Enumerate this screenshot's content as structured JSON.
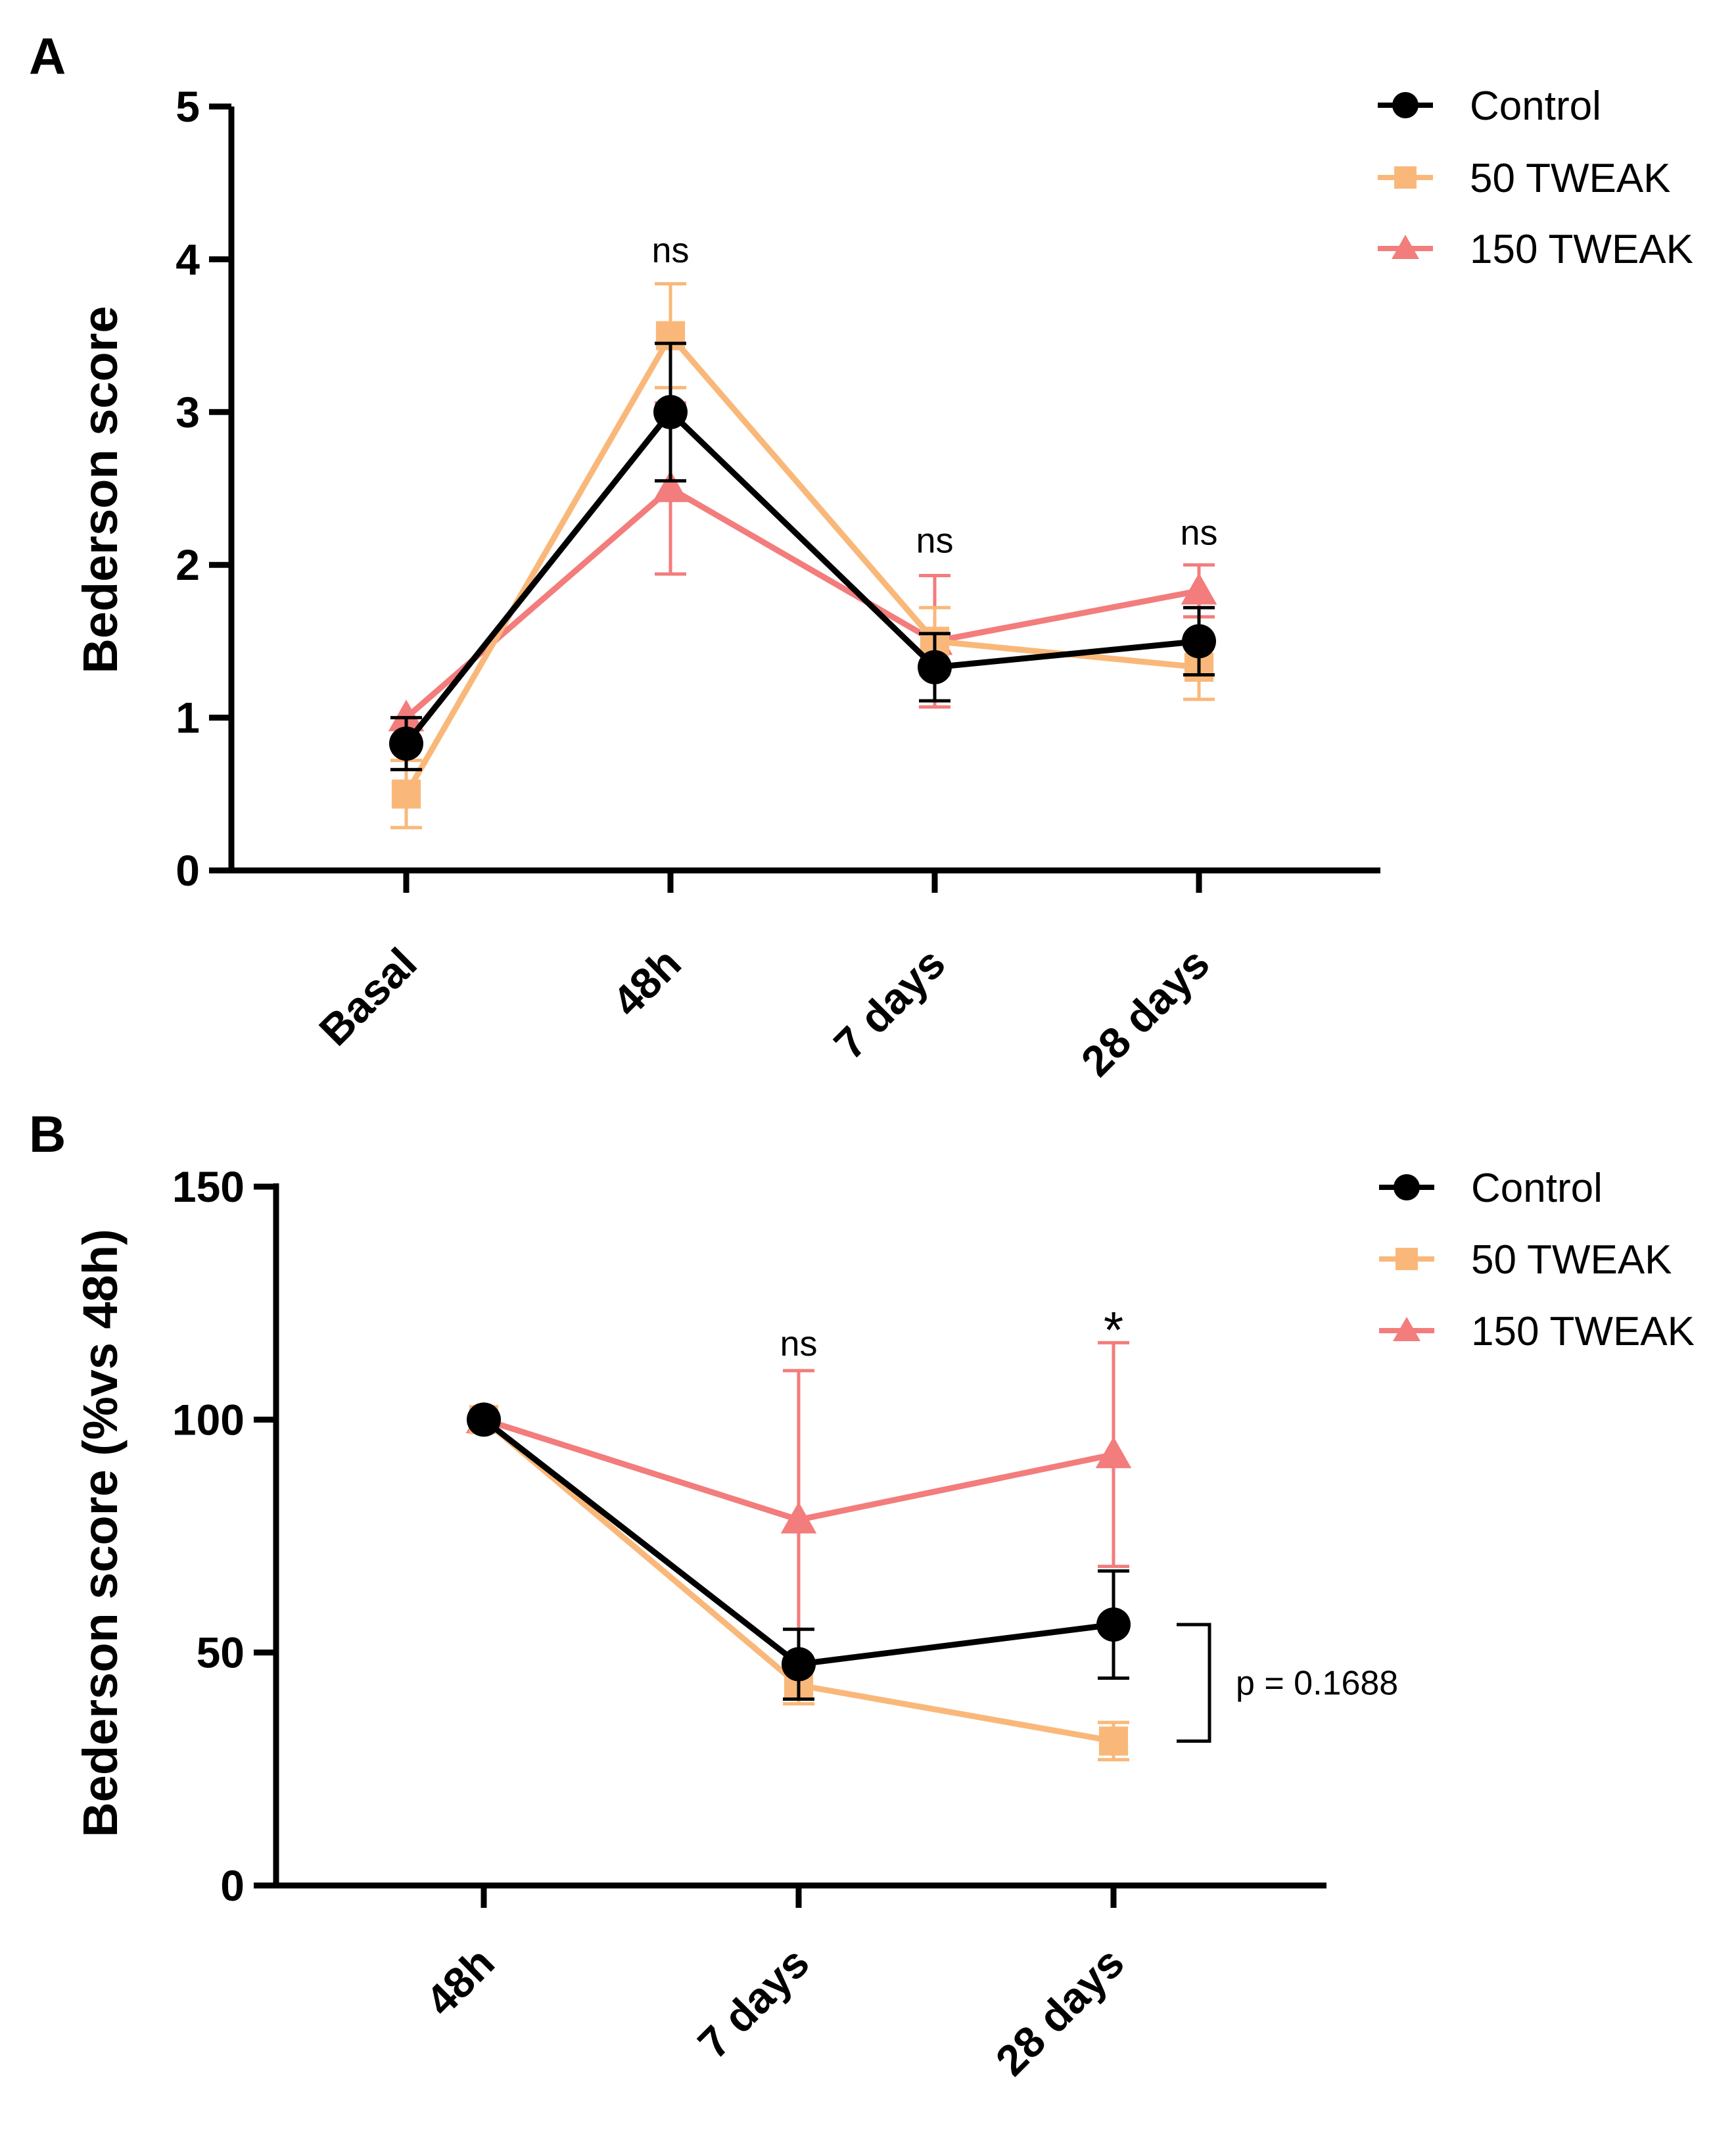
{
  "chart_data": [
    {
      "type": "line",
      "panel": "A",
      "title": "",
      "xlabel": "",
      "ylabel": "Bederson score",
      "ylim": [
        0,
        5
      ],
      "yticks": [
        "0",
        "1",
        "2",
        "3",
        "4",
        "5"
      ],
      "categories": [
        "Basal",
        "48h",
        "7 days",
        "28 days"
      ],
      "series": [
        {
          "name": "Control",
          "marker": "circle",
          "color": "#000000",
          "values": [
            0.83,
            3.0,
            1.33,
            1.5
          ],
          "errors": [
            0.17,
            0.45,
            0.22,
            0.22
          ]
        },
        {
          "name": "50 TWEAK",
          "marker": "square",
          "color": "#F9B87A",
          "values": [
            0.5,
            3.5,
            1.5,
            1.33
          ],
          "errors": [
            0.22,
            0.34,
            0.22,
            0.21
          ]
        },
        {
          "name": "150 TWEAK",
          "marker": "triangle",
          "color": "#F37C7C",
          "values": [
            1.0,
            2.5,
            1.5,
            1.83
          ],
          "errors": [
            0.0,
            0.56,
            0.43,
            0.17
          ]
        }
      ],
      "annotations": [
        {
          "category": "48h",
          "text": "ns",
          "y": 4.05
        },
        {
          "category": "7 days",
          "text": "ns",
          "y": 2.15
        },
        {
          "category": "28 days",
          "text": "ns",
          "y": 2.2
        }
      ],
      "legend": "top-right"
    },
    {
      "type": "line",
      "panel": "B",
      "title": "",
      "xlabel": "",
      "ylabel": "Bederson score (%vs 48h)",
      "ylim": [
        0,
        150
      ],
      "yticks": [
        "0",
        "50",
        "100",
        "150"
      ],
      "categories": [
        "48h",
        "7 days",
        "28 days"
      ],
      "series": [
        {
          "name": "Control",
          "marker": "circle",
          "color": "#000000",
          "values": [
            100,
            47.5,
            56
          ],
          "errors": [
            0,
            7.5,
            11.5
          ]
        },
        {
          "name": "50 TWEAK",
          "marker": "square",
          "color": "#F9B87A",
          "values": [
            100,
            43,
            31
          ],
          "errors": [
            0,
            4,
            4
          ]
        },
        {
          "name": "150 TWEAK",
          "marker": "triangle",
          "color": "#F37C7C",
          "values": [
            100,
            78.5,
            92.5
          ],
          "errors": [
            0,
            32,
            24
          ]
        }
      ],
      "annotations": [
        {
          "category": "7 days",
          "text": "ns",
          "y": 116
        },
        {
          "category": "28 days",
          "text": "*",
          "y": 122
        }
      ],
      "bracket": {
        "category": "28 days",
        "from": 56,
        "to": 31,
        "text": "p = 0.1688"
      },
      "legend": "top-right"
    }
  ]
}
